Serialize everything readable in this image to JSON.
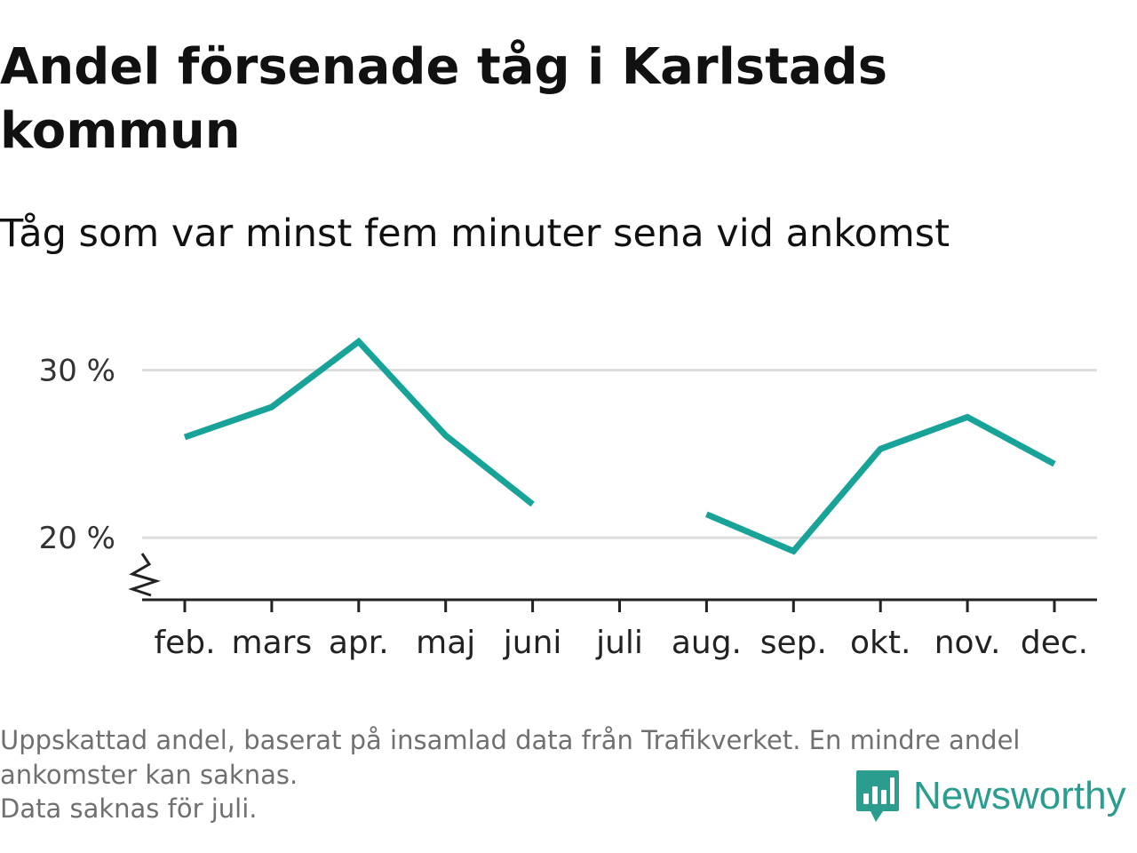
{
  "title": "Andel försenade tåg i Karlstads kommun",
  "subtitle": "Tåg som var minst fem minuter sena vid ankomst",
  "colors": {
    "line": "#17a398",
    "grid": "#dddddd",
    "axis": "#222222",
    "footnote": "#707070",
    "brand": "#2a9d8f"
  },
  "chart_data": {
    "type": "line",
    "categories": [
      "feb.",
      "mars",
      "apr.",
      "maj",
      "juni",
      "juli",
      "aug.",
      "sep.",
      "okt.",
      "nov.",
      "dec."
    ],
    "series": [
      {
        "values": [
          26.0,
          27.8,
          31.7,
          26.1,
          22.0,
          null,
          21.4,
          19.2,
          25.3,
          27.2,
          24.4
        ]
      }
    ],
    "ylim": [
      16.3,
      33.0
    ],
    "yticks": [
      20,
      30
    ],
    "ytick_labels": [
      "20 %",
      "30 %"
    ],
    "grid": true,
    "axis_break": true,
    "missing": [
      "juli"
    ]
  },
  "footnote": {
    "line1": "Uppskattad andel, baserat på insamlad data från Trafikverket. En mindre andel",
    "line2": "ankomster kan saknas.",
    "line3": "Data saknas för juli."
  },
  "brand": {
    "name": "Newsworthy",
    "icon": "newsworthy-logo-icon"
  }
}
